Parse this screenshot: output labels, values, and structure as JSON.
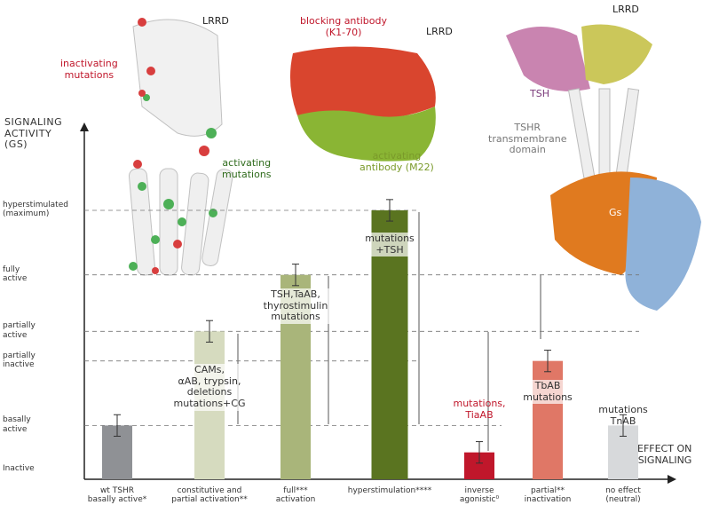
{
  "chart_data": {
    "type": "bar",
    "y_title": "SIGNALING\nACTIVITY\n(GS)",
    "x_title": "EFFECT ON\nSIGNALING",
    "categories": [
      "wt TSHR\nbasally active*",
      "constitutive and\npartial activation**",
      "full***\nactivation",
      "hyperstimulation****",
      "inverse\nagonistic⁰",
      "partial**\ninactivation",
      "no effect\n(neutral)"
    ],
    "values": [
      20,
      55,
      76,
      100,
      10,
      44,
      20
    ],
    "errors": [
      4,
      4,
      4,
      4,
      4,
      4,
      4
    ],
    "colors": [
      "#8f9195",
      "#d6dbbf",
      "#a9b57a",
      "#5a7420",
      "#c0172b",
      "#e07766",
      "#d7d9db"
    ],
    "bar_labels": [
      null,
      "CAMs,\nαAB, trypsin,\ndeletions\nmutations+CG",
      "TSH,TaAB,\nthyrostimulin\nmutations",
      "mutations\n+TSH",
      "mutations,\nTiaAB",
      "TbAB\nmutations",
      "mutations\nTnAB"
    ],
    "ylim": [
      0,
      132
    ],
    "yticks": [
      {
        "value": 4,
        "label": "Inactive"
      },
      {
        "value": 20,
        "label": "basally\nactive"
      },
      {
        "value": 44,
        "label": "partially\ninactive"
      },
      {
        "value": 55,
        "label": "partially\nactive"
      },
      {
        "value": 76,
        "label": "fully\nactive"
      },
      {
        "value": 100,
        "label": "hyperstimulated\n(maximum)"
      }
    ],
    "grid": true,
    "annotations": {
      "lrrd_left": "LRRD",
      "inactivating": "inactivating\nmutations",
      "activating": "activating\nmutations",
      "blocking": "blocking antibody\n(K1-70)",
      "lrrd_mid": "LRRD",
      "activating_ab": "activating\nantibody (M22)",
      "lrrd_right": "LRRD",
      "tsh": "TSH",
      "tshr_tm": "TSHR\ntransmembrane\ndomain",
      "gs": "Gs"
    }
  }
}
